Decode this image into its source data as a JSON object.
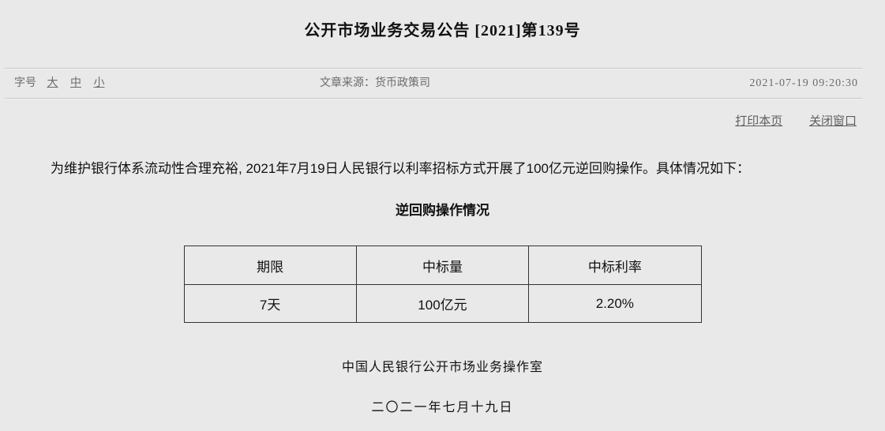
{
  "title": "公开市场业务交易公告 [2021]第139号",
  "meta": {
    "font_size_label": "字号",
    "font_size_options": [
      "大",
      "中",
      "小"
    ],
    "source_label": "文章来源：",
    "source_value": "货币政策司",
    "timestamp": "2021-07-19 09:20:30"
  },
  "actions": {
    "print_label": "打印本页",
    "close_label": "关闭窗口"
  },
  "body": {
    "paragraph": "为维护银行体系流动性合理充裕, 2021年7月19日人民银行以利率招标方式开展了100亿元逆回购操作。具体情况如下："
  },
  "table": {
    "title": "逆回购操作情况",
    "headers": [
      "期限",
      "中标量",
      "中标利率"
    ],
    "rows": [
      [
        "7天",
        "100亿元",
        "2.20%"
      ]
    ]
  },
  "footer": {
    "office": "中国人民银行公开市场业务操作室",
    "date": "二〇二一年七月十九日"
  }
}
